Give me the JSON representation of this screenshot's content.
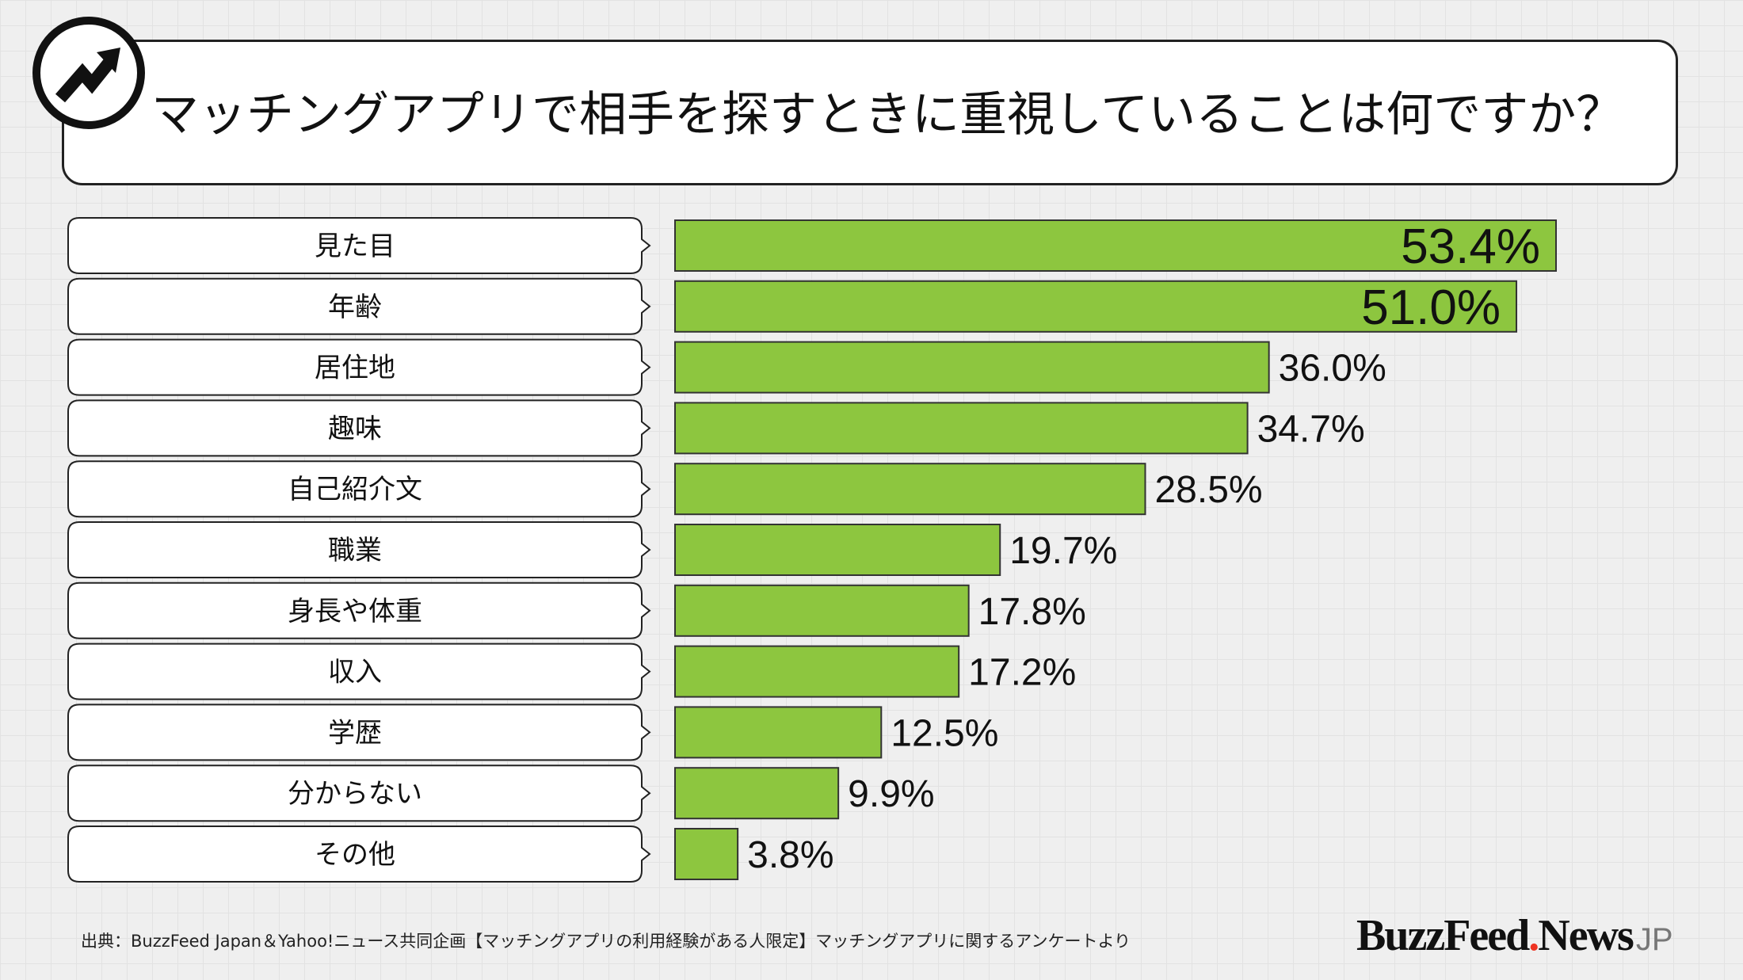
{
  "header": {
    "title": "マッチングアプリで相手を探すときに重視していることは何ですか？",
    "logo_icon": "trending-arrow-icon"
  },
  "chart_data": {
    "type": "bar",
    "orientation": "horizontal",
    "title": "マッチングアプリで相手を探すときに重視していることは何ですか？",
    "categories": [
      "見た目",
      "年齢",
      "居住地",
      "趣味",
      "自己紹介文",
      "職業",
      "身長や体重",
      "収入",
      "学歴",
      "分からない",
      "その他"
    ],
    "values": [
      53.4,
      51.0,
      36.0,
      34.7,
      28.5,
      19.7,
      17.8,
      17.2,
      12.5,
      9.9,
      3.8
    ],
    "value_labels": [
      "53.4%",
      "51.0%",
      "36.0%",
      "34.7%",
      "28.5%",
      "19.7%",
      "17.8%",
      "17.2%",
      "12.5%",
      "9.9%",
      "3.8%"
    ],
    "xlim": [
      0,
      53.4
    ],
    "bar_color": "#8dc63f",
    "grid": false,
    "legend": "none"
  },
  "footer": {
    "source": "出典：BuzzFeed Japan＆Yahoo!ニュース共同企画【マッチングアプリの利用経験がある人限定】マッチングアプリに関するアンケートより",
    "brand_main": "BuzzFeed",
    "brand_dot": ".",
    "brand_news": "News",
    "brand_jp": "JP"
  }
}
